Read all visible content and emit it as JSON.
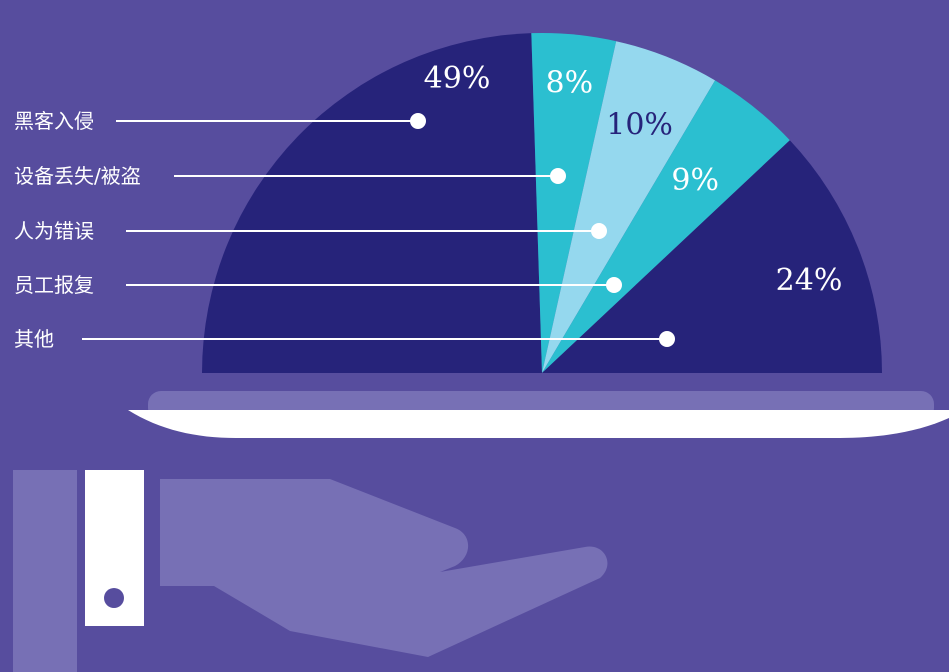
{
  "chart_data": {
    "type": "pie",
    "categories": [
      "黑客入侵",
      "设备丢失/被盗",
      "人为错误",
      "员工报复",
      "其他"
    ],
    "values": [
      49,
      8,
      10,
      9,
      24
    ],
    "data_labels": [
      "49%",
      "8%",
      "10%",
      "9%",
      "24%"
    ],
    "title": "",
    "legend_placement": "left",
    "colors": [
      "#26237a",
      "#2bbfd0",
      "#95d8ee",
      "#2bbfd0",
      "#26237a"
    ],
    "label_colors": [
      "#ffffff",
      "#ffffff",
      "#26237a",
      "#ffffff",
      "#ffffff"
    ]
  },
  "illustration": {
    "background_color": "#574d9e",
    "tray_color": "#ffffff",
    "tray_rim_color": "#7770b5",
    "hand_color": "#7770b5",
    "cuff_color": "#ffffff"
  }
}
